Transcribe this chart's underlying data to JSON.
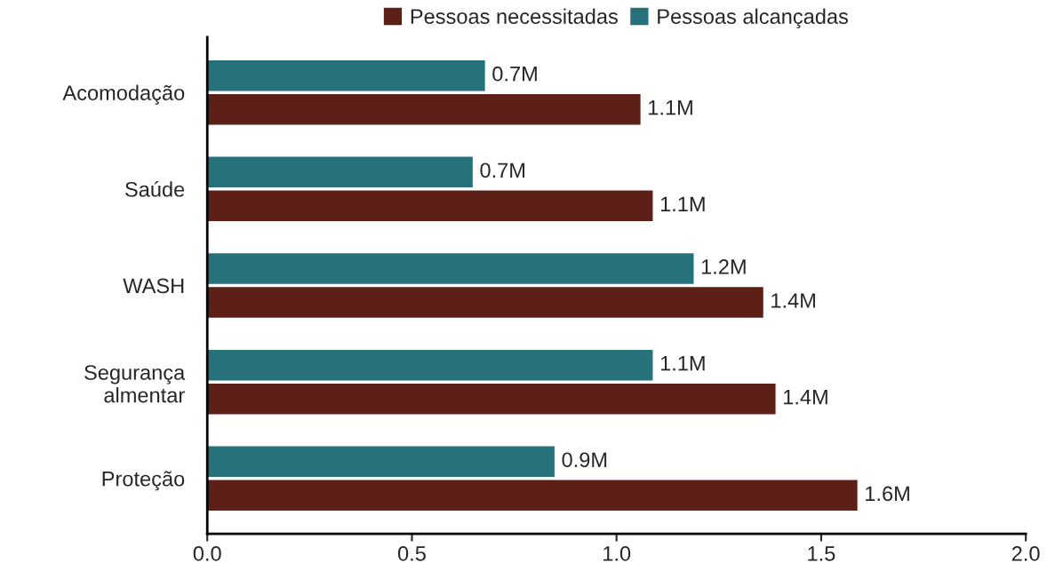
{
  "chart_data": {
    "type": "bar",
    "orientation": "horizontal",
    "categories": [
      "Acomodação",
      "Saúde",
      "WASH",
      "Segurança\nalmentar",
      "Proteção"
    ],
    "series": [
      {
        "name": "Pessoas necessitadas",
        "color": "#5c2018",
        "values": [
          1.06,
          1.09,
          1.36,
          1.39,
          1.59
        ],
        "value_labels": [
          "1.1M",
          "1.1M",
          "1.4M",
          "1.4M",
          "1.6M"
        ]
      },
      {
        "name": "Pessoas alcançadas",
        "color": "#27717a",
        "values": [
          0.68,
          0.65,
          1.19,
          1.09,
          0.85
        ],
        "value_labels": [
          "0.7M",
          "0.7M",
          "1.2M",
          "1.1M",
          "0.9M"
        ]
      }
    ],
    "xlim": [
      0.0,
      2.0
    ],
    "xticks": [
      {
        "value": 0,
        "label": "0.0"
      },
      0.5,
      {
        "value": 1,
        "label": "1.0"
      },
      1.5,
      {
        "value": 2,
        "label": "2.0"
      }
    ],
    "grid": false,
    "legend": "top"
  }
}
